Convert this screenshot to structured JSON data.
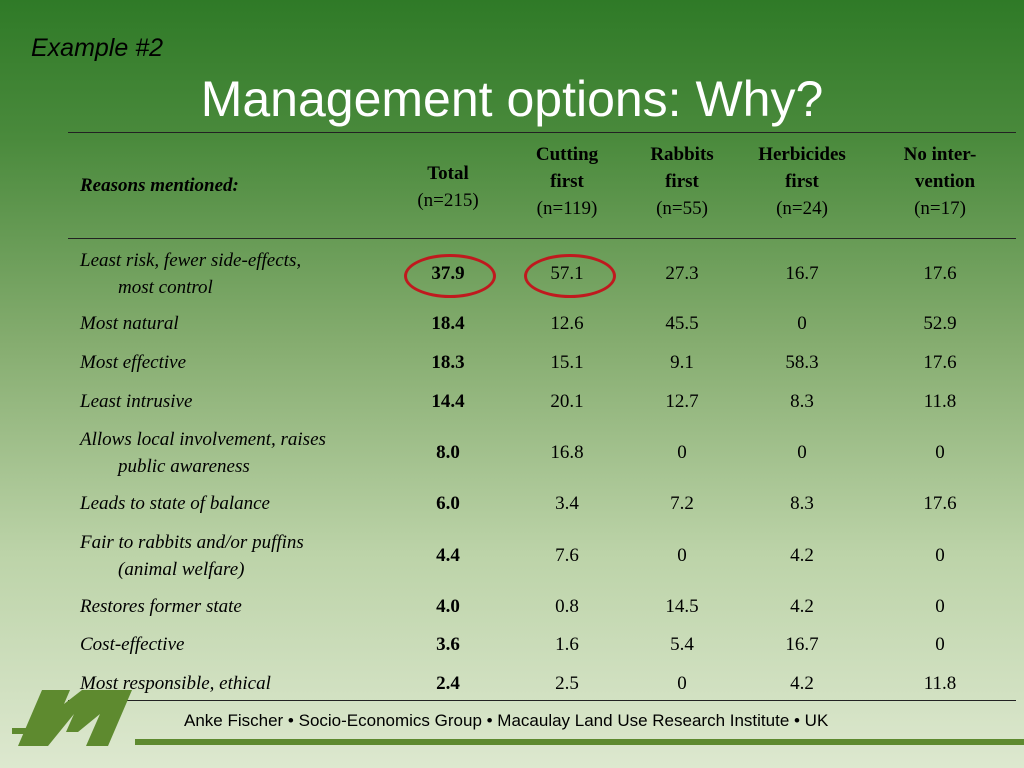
{
  "header": {
    "example_label": "Example #2",
    "title": "Management options: Why?"
  },
  "table": {
    "reason_header": "Reasons mentioned:",
    "columns": [
      {
        "line1": "Total",
        "line2": "(n=215)",
        "line3": ""
      },
      {
        "line1": "Cutting",
        "line2": "first",
        "line3": "(n=119)"
      },
      {
        "line1": "Rabbits",
        "line2": "first",
        "line3": "(n=55)"
      },
      {
        "line1": "Herbicides",
        "line2": "first",
        "line3": "(n=24)"
      },
      {
        "line1": "No inter-",
        "line2": "vention",
        "line3": "(n=17)"
      }
    ],
    "rows": [
      {
        "reason1": "Least risk, fewer side-effects,",
        "reason2": "most control",
        "total": "37.9",
        "cutting": "57.1",
        "rabbits": "27.3",
        "herbicides": "16.7",
        "none": "17.6"
      },
      {
        "reason1": "Most natural",
        "reason2": "",
        "total": "18.4",
        "cutting": "12.6",
        "rabbits": "45.5",
        "herbicides": "0",
        "none": "52.9"
      },
      {
        "reason1": "Most effective",
        "reason2": "",
        "total": "18.3",
        "cutting": "15.1",
        "rabbits": "9.1",
        "herbicides": "58.3",
        "none": "17.6"
      },
      {
        "reason1": "Least intrusive",
        "reason2": "",
        "total": "14.4",
        "cutting": "20.1",
        "rabbits": "12.7",
        "herbicides": "8.3",
        "none": "11.8"
      },
      {
        "reason1": "Allows local involvement, raises",
        "reason2": "public awareness",
        "total": "8.0",
        "cutting": "16.8",
        "rabbits": "0",
        "herbicides": "0",
        "none": "0"
      },
      {
        "reason1": "Leads to state of balance",
        "reason2": "",
        "total": "6.0",
        "cutting": "3.4",
        "rabbits": "7.2",
        "herbicides": "8.3",
        "none": "17.6"
      },
      {
        "reason1": "Fair to rabbits and/or puffins",
        "reason2": "(animal welfare)",
        "total": "4.4",
        "cutting": "7.6",
        "rabbits": "0",
        "herbicides": "4.2",
        "none": "0"
      },
      {
        "reason1": "Restores former state",
        "reason2": "",
        "total": "4.0",
        "cutting": "0.8",
        "rabbits": "14.5",
        "herbicides": "4.2",
        "none": "0"
      },
      {
        "reason1": "Cost-effective",
        "reason2": "",
        "total": "3.6",
        "cutting": "1.6",
        "rabbits": "5.4",
        "herbicides": "16.7",
        "none": "0"
      },
      {
        "reason1": "Most responsible, ethical",
        "reason2": "",
        "total": "2.4",
        "cutting": "2.5",
        "rabbits": "0",
        "herbicides": "4.2",
        "none": "11.8"
      }
    ]
  },
  "footer": {
    "text": "Anke Fischer • Socio-Economics Group • Macaulay Land Use Research Institute • UK"
  },
  "colors": {
    "highlight_circle": "#c0191e",
    "footer_bar": "#5e8a2f",
    "logo": "#5e8a2f"
  }
}
